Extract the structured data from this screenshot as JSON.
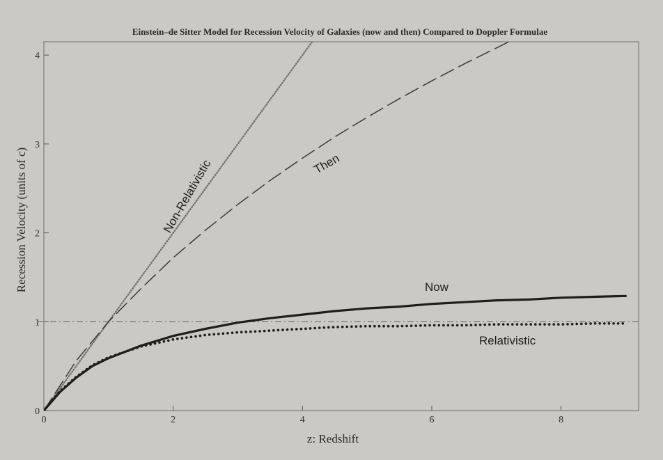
{
  "chart_data": {
    "type": "line",
    "title": "Einstein–de Sitter Model for Recession Velocity of Galaxies (now and then) Compared to Doppler Formulae",
    "xlabel": "z:  Redshift",
    "ylabel": "Recession Velocity (units of c)",
    "xlim": [
      0,
      9.2
    ],
    "ylim": [
      0,
      4.15
    ],
    "x_ticks": [
      "0",
      "2",
      "4",
      "6",
      "8"
    ],
    "y_ticks": [
      "0",
      "1",
      "2",
      "3",
      "4"
    ],
    "x_tick_values": [
      0,
      2,
      4,
      6,
      8
    ],
    "y_tick_values": [
      0,
      1,
      2,
      3,
      4
    ],
    "grid": false,
    "reference_line": {
      "y": 1,
      "style": "dash-dot"
    },
    "series": [
      {
        "name": "Non-Relativistic",
        "style": "dotted",
        "x": [
          0,
          1,
          2,
          3,
          4.2
        ],
        "y": [
          0,
          1,
          2,
          3,
          4.2
        ]
      },
      {
        "name": "Then",
        "style": "dashed",
        "x": [
          0,
          0.5,
          1,
          1.5,
          2,
          2.5,
          3,
          3.5,
          4,
          4.5,
          5,
          5.5,
          6,
          6.5,
          7,
          7.5,
          8,
          8.5,
          9
        ],
        "y": [
          0,
          0.56,
          1.0,
          1.37,
          1.72,
          2.03,
          2.32,
          2.59,
          2.84,
          3.08,
          3.3,
          3.51,
          3.71,
          3.9,
          4.08,
          4.26,
          4.43,
          4.59,
          4.74
        ]
      },
      {
        "name": "Now",
        "style": "solid",
        "x": [
          0,
          0.25,
          0.5,
          0.75,
          1,
          1.5,
          2,
          2.5,
          3,
          3.5,
          4,
          4.5,
          5,
          5.5,
          6,
          6.5,
          7,
          7.5,
          8,
          8.5,
          9
        ],
        "y": [
          0,
          0.21,
          0.37,
          0.5,
          0.59,
          0.73,
          0.84,
          0.92,
          0.99,
          1.04,
          1.08,
          1.12,
          1.15,
          1.17,
          1.2,
          1.22,
          1.24,
          1.25,
          1.27,
          1.28,
          1.29
        ]
      },
      {
        "name": "Relativistic",
        "style": "dotted",
        "x": [
          0,
          0.25,
          0.5,
          0.75,
          1,
          1.5,
          2,
          2.5,
          3,
          3.5,
          4,
          4.5,
          5,
          5.5,
          6,
          6.5,
          7,
          7.5,
          8,
          8.5,
          9
        ],
        "y": [
          0,
          0.22,
          0.38,
          0.51,
          0.6,
          0.72,
          0.8,
          0.85,
          0.88,
          0.9,
          0.92,
          0.94,
          0.95,
          0.95,
          0.96,
          0.96,
          0.97,
          0.97,
          0.97,
          0.98,
          0.98
        ]
      }
    ],
    "curve_labels": {
      "nonrel": "Non-Relativistic",
      "then": "Then",
      "now": "Now",
      "rel": "Relativistic"
    }
  }
}
